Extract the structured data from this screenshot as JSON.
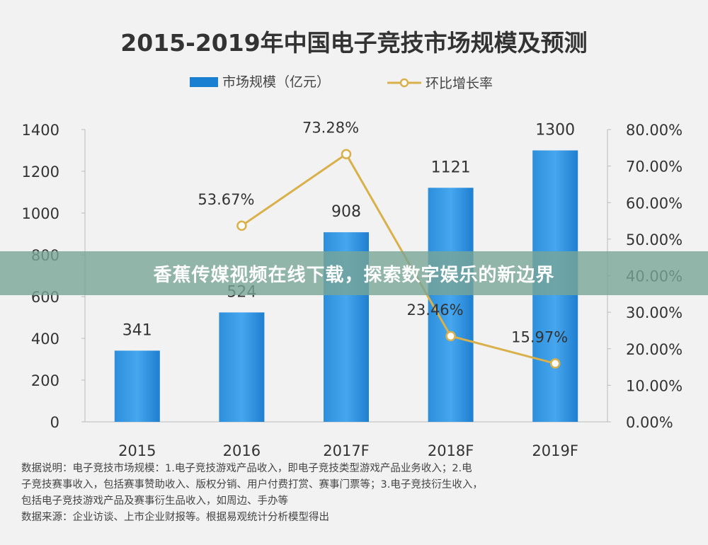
{
  "chart_data": {
    "type": "bar",
    "title": "2015-2019年中国电子竞技市场规模及预测",
    "categories": [
      "2015",
      "2016",
      "2017F",
      "2018F",
      "2019F"
    ],
    "series": [
      {
        "name": "市场规模（亿元）",
        "kind": "bar",
        "axis": "left",
        "values": [
          341,
          524,
          908,
          1121,
          1300
        ],
        "labels": [
          "341",
          "524",
          "908",
          "1121",
          "1300"
        ]
      },
      {
        "name": "环比增长率",
        "kind": "line",
        "axis": "right",
        "values": [
          null,
          53.67,
          73.28,
          23.46,
          15.97
        ],
        "labels": [
          "",
          "53.67%",
          "73.28%",
          "23.46%",
          "15.97%"
        ]
      }
    ],
    "y_left": {
      "range": [
        0,
        1400
      ],
      "ticks": [
        "0",
        "200",
        "400",
        "600",
        "800",
        "1000",
        "1200",
        "1400"
      ]
    },
    "y_right": {
      "range": [
        0,
        80
      ],
      "ticks": [
        "0.00%",
        "10.00%",
        "20.00%",
        "30.00%",
        "40.00%",
        "50.00%",
        "60.00%",
        "70.00%",
        "80.00%"
      ]
    },
    "legend_position": "top",
    "grid": false,
    "colors": {
      "bar": "#1a7fd0",
      "bar_light": "#3aa0ea",
      "line": "#d9b04a",
      "marker_fill": "#ffffff"
    }
  },
  "banner": "香蕉传媒视频在线下载，探索数字娱乐的新边界",
  "notes": [
    "数据说明：电子竞技市场规模：1.电子竞技游戏产品收入，即电子竞技类型游戏产品业务收入；2.电",
    "子竞技赛事收入，包括赛事赞助收入、版权分销、用户付费打赏、赛事门票等；3.电子竞技衍生收入，",
    "包括电子竞技游戏产品及赛事衍生品收入，如周边、手办等",
    "数据来源：企业访谈、上市企业财报等。根据易观统计分析模型得出"
  ]
}
